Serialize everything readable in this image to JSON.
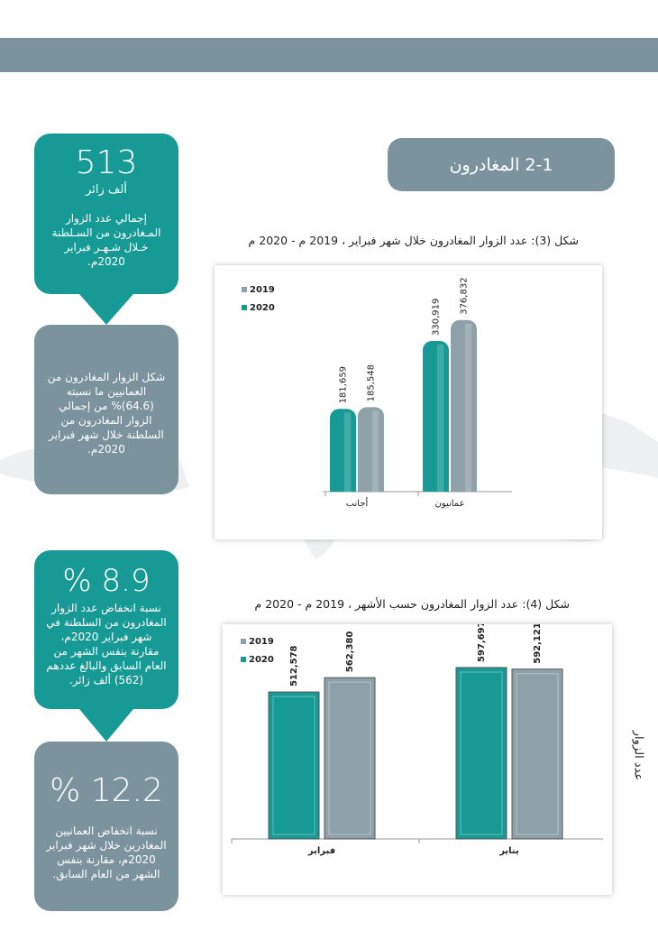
{
  "section": {
    "title": "2-1 المغادرون"
  },
  "callouts": [
    {
      "number": "513",
      "unit": "ألف زائر",
      "text": "إجمالي عدد الزوار المـغادرون من السـلطنة خـلال شـهـر فبراير 2020م."
    },
    {
      "text": "شكل الزوار المغادرون من العمانيين ما نسبته (64.6)% من إجمالي الزوار المغادرون من السلطنة خلال شهر فبراير 2020م."
    },
    {
      "number": "% 8.9",
      "text": "نسبة انخفاض عدد الزوار المغادرون من السلطنة في شهر فبراير 2020م، مقارنة بنفس الشهر من العام السابق والبالغ عددهم (562) ألف زائر."
    },
    {
      "number": "% 12.2",
      "text": "نسبة انخفاض العمانيين المغادرين خلال شهر فبراير 2020م، مقارنة بنفس الشهر من العام السابق."
    }
  ],
  "figures": [
    {
      "caption": "شكل (3): عدد الزوار المغادرون خلال شهر فبراير ، 2019 م - 2020 م"
    },
    {
      "caption": "شكل (4): عدد الزوار المغادرون حسب الأشهر ، 2019 م - 2020 م",
      "side_label": "عدد الزوار"
    }
  ],
  "colors": {
    "teal": "#179a95",
    "grey": "#8ea1a8",
    "banner": "#7b939c"
  },
  "chart_data": [
    {
      "type": "bar",
      "categories": [
        "أجانب",
        "عمانيون"
      ],
      "series": [
        {
          "name": "2020",
          "values": [
            181659,
            330919
          ],
          "labels": [
            "181,659",
            "330,919"
          ],
          "color": "#179a95"
        },
        {
          "name": "2019",
          "values": [
            185548,
            376832
          ],
          "labels": [
            "185,548",
            "376,832"
          ],
          "color": "#8ea1a8"
        }
      ],
      "legend": [
        "2019",
        "2020"
      ],
      "legend_position": "top-left",
      "ylim": [
        0,
        420000
      ]
    },
    {
      "type": "bar",
      "categories": [
        "فبراير",
        "يناير"
      ],
      "series": [
        {
          "name": "2020",
          "values": [
            512578,
            597697
          ],
          "labels": [
            "512,578",
            "597,697"
          ],
          "color": "#179a95"
        },
        {
          "name": "2019",
          "values": [
            562380,
            592121
          ],
          "labels": [
            "562,380",
            "592,121"
          ],
          "color": "#8ea1a8"
        }
      ],
      "legend": [
        "2019",
        "2020"
      ],
      "legend_position": "top-left",
      "ylim": [
        0,
        670000
      ]
    }
  ]
}
